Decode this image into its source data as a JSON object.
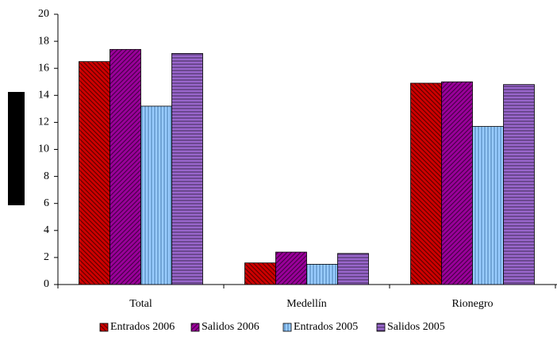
{
  "chart_data": {
    "type": "bar",
    "categories": [
      "Total",
      "Medellín",
      "Rionegro"
    ],
    "series": [
      {
        "name": "Entrados 2006",
        "color": "#cc0000",
        "values": [
          16.5,
          1.6,
          14.9
        ]
      },
      {
        "name": "Salidos 2006",
        "color": "#990099",
        "values": [
          17.4,
          2.4,
          15.0
        ]
      },
      {
        "name": "Entrados 2005",
        "color": "#99ccff",
        "values": [
          13.2,
          1.5,
          11.7
        ]
      },
      {
        "name": "Salidos 2005",
        "color": "#9966cc",
        "values": [
          17.1,
          2.3,
          14.8
        ]
      }
    ],
    "ylim": [
      0,
      20
    ],
    "yticks": [
      0,
      2,
      4,
      6,
      8,
      10,
      12,
      14,
      16,
      18,
      20
    ],
    "grid": false,
    "legend": "bottom"
  }
}
